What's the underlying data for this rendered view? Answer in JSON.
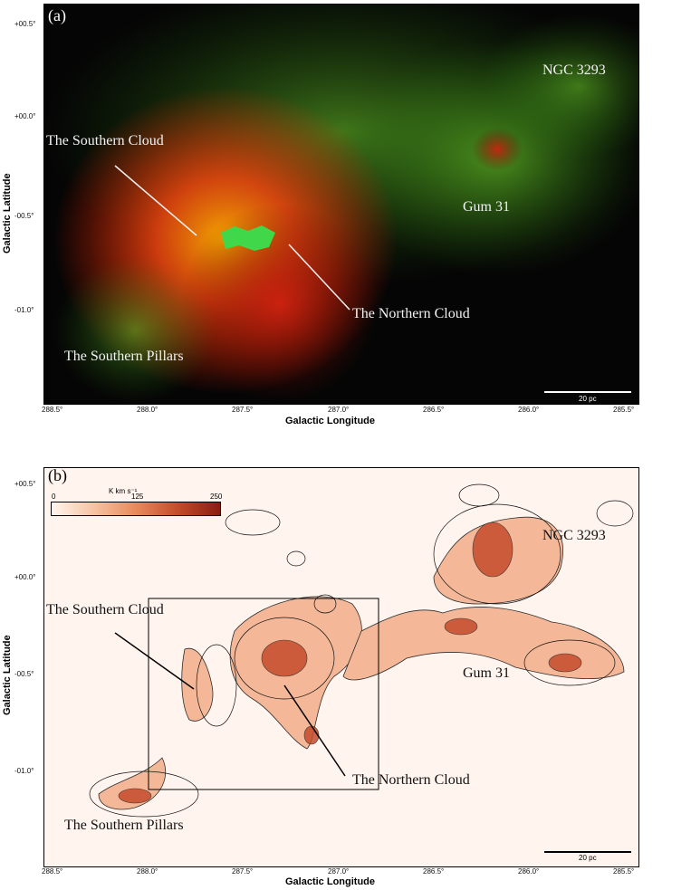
{
  "figure": {
    "panel_a": {
      "tag": "(a)",
      "ylabel": "Galactic Latitude",
      "xlabel": "Galactic Longitude",
      "y_ticks": [
        "+00.5°",
        "+00.0°",
        "-00.5°",
        "-01.0°"
      ],
      "x_ticks": [
        "288.5°",
        "288.0°",
        "287.5°",
        "287.0°",
        "286.5°",
        "286.0°",
        "285.5°"
      ],
      "labels": {
        "southern_cloud": "The Southern Cloud",
        "northern_cloud": "The Northern Cloud",
        "southern_pillars": "The Southern Pillars",
        "gum31": "Gum 31",
        "ngc3293": "NGC 3293"
      },
      "scalebar": "20 pc"
    },
    "panel_b": {
      "tag": "(b)",
      "ylabel": "Galactic Latitude",
      "xlabel": "Galactic Longitude",
      "y_ticks": [
        "+00.5°",
        "+00.0°",
        "-00.5°",
        "-01.0°"
      ],
      "x_ticks": [
        "288.5°",
        "288.0°",
        "287.5°",
        "287.0°",
        "286.5°",
        "286.0°",
        "285.5°"
      ],
      "colorbar": {
        "unit": "K km s⁻¹",
        "ticks": [
          "0",
          "125",
          "250"
        ],
        "colors": [
          "#fff6ef",
          "#f6c3a2",
          "#e88a5d",
          "#c44b2b",
          "#8a1c12"
        ]
      },
      "labels": {
        "southern_cloud": "The Southern Cloud",
        "northern_cloud": "The Northern Cloud",
        "southern_pillars": "The Southern Pillars",
        "gum31": "Gum 31",
        "ngc3293": "NGC 3293"
      },
      "scalebar": "20 pc"
    }
  }
}
